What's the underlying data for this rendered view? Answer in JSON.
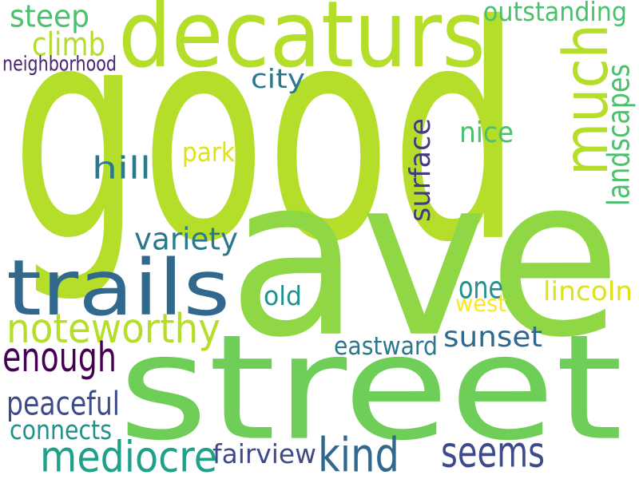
{
  "colors": {
    "lime": "#b5de2b",
    "light_green": "#8fd744",
    "green": "#6ece58",
    "mint": "#4ac16d",
    "teal_green": "#35b779",
    "teal": "#1fa088",
    "sea": "#21918c",
    "blue_teal": "#2a788e",
    "steel_blue": "#31688e",
    "dark_blue": "#3e4a89",
    "indigo": "#443a83",
    "purple": "#482475",
    "deep_purple": "#440154",
    "yellow": "#dde318",
    "gold": "#fde725"
  },
  "words": [
    {
      "id": "good",
      "text": "good"
    },
    {
      "id": "ave",
      "text": "ave"
    },
    {
      "id": "street",
      "text": "street"
    },
    {
      "id": "decaturs",
      "text": "decaturs"
    },
    {
      "id": "trails",
      "text": "trails"
    },
    {
      "id": "much",
      "text": "much"
    },
    {
      "id": "noteworthy",
      "text": "noteworthy"
    },
    {
      "id": "mediocre",
      "text": "mediocre"
    },
    {
      "id": "kind",
      "text": "kind"
    },
    {
      "id": "seems",
      "text": "seems"
    },
    {
      "id": "enough",
      "text": "enough"
    },
    {
      "id": "surface",
      "text": "surface"
    },
    {
      "id": "landscapes",
      "text": "landscapes"
    },
    {
      "id": "variety",
      "text": "variety"
    },
    {
      "id": "peaceful",
      "text": "peaceful"
    },
    {
      "id": "hill",
      "text": "hill"
    },
    {
      "id": "one",
      "text": "one"
    },
    {
      "id": "outstanding",
      "text": "outstanding"
    },
    {
      "id": "steep",
      "text": "steep"
    },
    {
      "id": "climb",
      "text": "climb"
    },
    {
      "id": "nice",
      "text": "nice"
    },
    {
      "id": "lincoln",
      "text": "lincoln"
    },
    {
      "id": "eastward",
      "text": "eastward"
    },
    {
      "id": "sunset",
      "text": "sunset"
    },
    {
      "id": "fairview",
      "text": "fairview"
    },
    {
      "id": "connects",
      "text": "connects"
    },
    {
      "id": "city",
      "text": "city"
    },
    {
      "id": "park",
      "text": "park"
    },
    {
      "id": "old",
      "text": "old"
    },
    {
      "id": "west",
      "text": "west"
    },
    {
      "id": "neighborhood",
      "text": "neighborhood"
    }
  ]
}
